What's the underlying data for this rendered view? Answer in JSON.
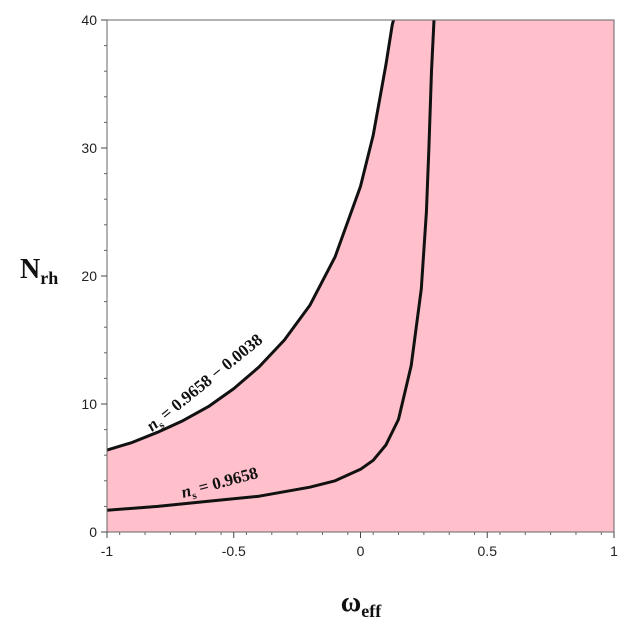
{
  "chart_data": {
    "type": "area",
    "title": "",
    "xlabel": {
      "main": "ω",
      "sub": "eff"
    },
    "ylabel": {
      "main": "N",
      "sub": "rh"
    },
    "xlim": [
      -1,
      1
    ],
    "ylim": [
      0,
      40
    ],
    "xticks": [
      -1,
      -0.5,
      0,
      0.5,
      1
    ],
    "xtick_labels": [
      "-1",
      "-0.5",
      "0",
      "0.5",
      "1"
    ],
    "yticks": [
      0,
      10,
      20,
      30,
      40
    ],
    "ytick_labels": [
      "0",
      "10",
      "20",
      "30",
      "40"
    ],
    "grid": false,
    "shading_color": "#ffc0cb",
    "curve_color": "#111111",
    "series": [
      {
        "label": {
          "var": "n",
          "sub": "s",
          "text": " = 0.9658 − 0.0038"
        },
        "x": [
          -1.0,
          -0.9,
          -0.8,
          -0.7,
          -0.6,
          -0.5,
          -0.4,
          -0.3,
          -0.2,
          -0.1,
          0.0,
          0.05,
          0.1,
          0.125,
          0.13
        ],
        "y": [
          6.4,
          7.0,
          7.8,
          8.7,
          9.8,
          11.2,
          12.9,
          15.0,
          17.7,
          21.5,
          27.0,
          31.0,
          36.5,
          39.6,
          40.0
        ]
      },
      {
        "label": {
          "var": "n",
          "sub": "s",
          "text": " = 0.9658"
        },
        "x": [
          -1.0,
          -0.8,
          -0.6,
          -0.4,
          -0.2,
          -0.1,
          0.0,
          0.05,
          0.1,
          0.15,
          0.2,
          0.24,
          0.26,
          0.27,
          0.28,
          0.29
        ],
        "y": [
          1.7,
          2.0,
          2.4,
          2.8,
          3.5,
          4.0,
          4.9,
          5.6,
          6.8,
          8.8,
          13.0,
          19.0,
          25.0,
          30.0,
          36.0,
          40.0
        ]
      }
    ]
  }
}
